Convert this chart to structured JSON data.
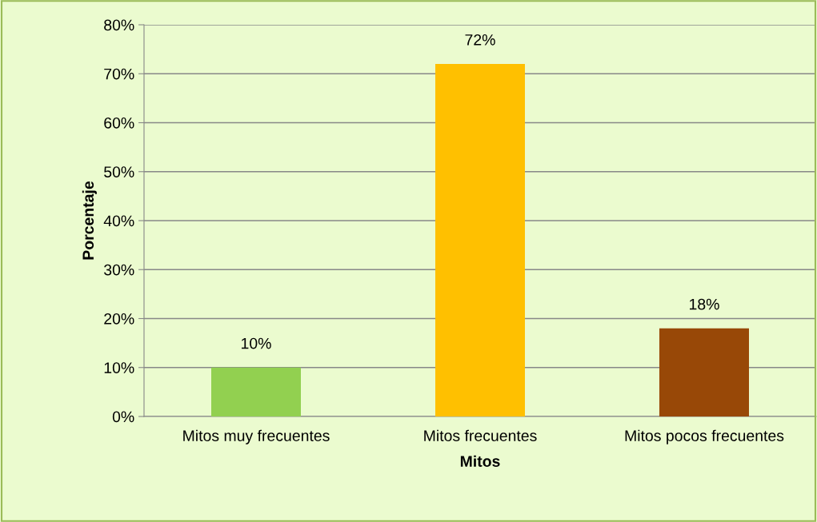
{
  "chart_data": {
    "type": "bar",
    "xlabel": "Mitos",
    "ylabel": "Porcentaje",
    "categories": [
      "Mitos muy frecuentes",
      "Mitos frecuentes",
      "Mitos pocos frecuentes"
    ],
    "values": [
      10,
      72,
      18
    ],
    "colors": [
      "#92d050",
      "#ffc000",
      "#984807"
    ],
    "value_labels": [
      "10%",
      "72%",
      "18%"
    ],
    "ylim": [
      0,
      80
    ],
    "yticks": [
      {
        "value": 0,
        "label": "0%"
      },
      {
        "value": 10,
        "label": "10%"
      },
      {
        "value": 20,
        "label": "20%"
      },
      {
        "value": 30,
        "label": "30%"
      },
      {
        "value": 40,
        "label": "40%"
      },
      {
        "value": 50,
        "label": "50%"
      },
      {
        "value": 60,
        "label": "60%"
      },
      {
        "value": 70,
        "label": "70%"
      },
      {
        "value": 80,
        "label": "80%"
      }
    ],
    "grid": "y",
    "legend": false
  }
}
